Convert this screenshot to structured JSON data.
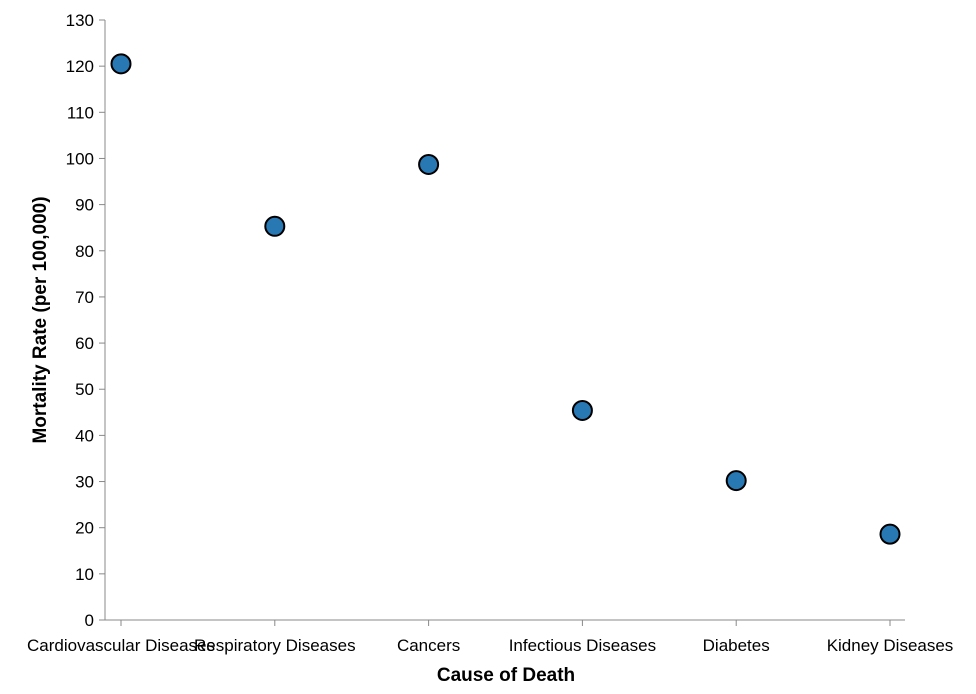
{
  "chart_data": {
    "type": "scatter",
    "title": "",
    "xlabel": "Cause of Death",
    "ylabel": "Mortality Rate (per 100,000)",
    "categories": [
      "Cardiovascular Diseases",
      "Respiratory Diseases",
      "Cancers",
      "Infectious Diseases",
      "Diabetes",
      "Kidney Diseases"
    ],
    "series": [
      {
        "values": [
          120.5,
          85.3,
          98.7,
          45.4,
          30.2,
          18.6
        ]
      }
    ],
    "ylim": [
      0,
      130
    ],
    "yticks": [
      0,
      10,
      20,
      30,
      40,
      50,
      60,
      70,
      80,
      90,
      100,
      110,
      120,
      130
    ],
    "grid": false,
    "point_color": "#2878b4"
  }
}
